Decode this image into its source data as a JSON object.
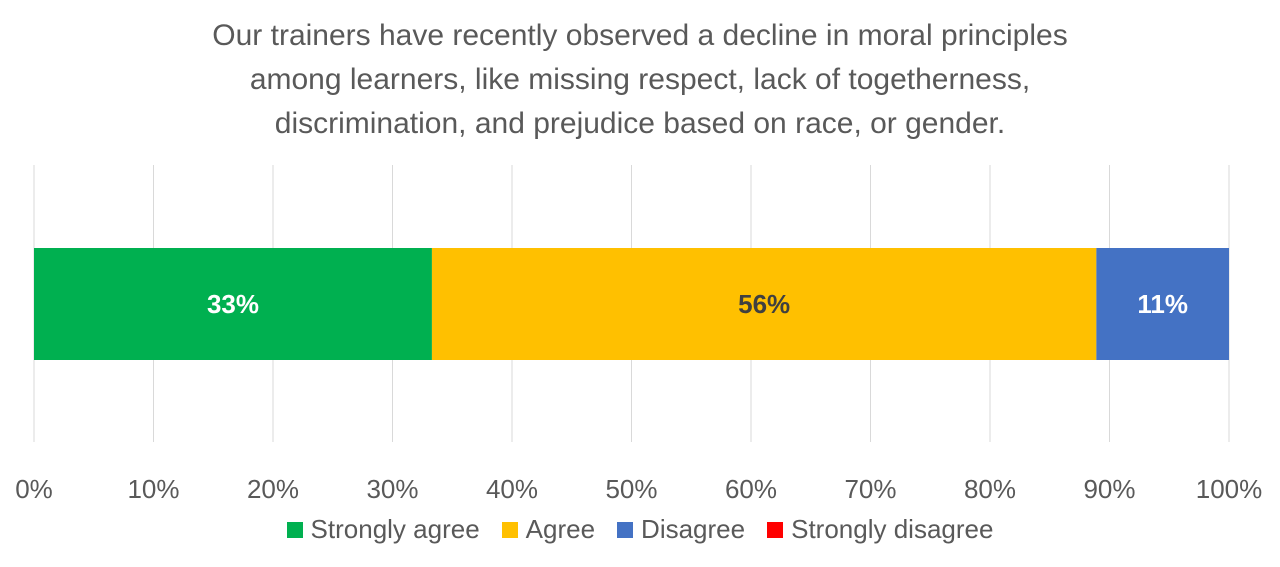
{
  "chart_data": {
    "type": "bar",
    "orientation": "horizontal",
    "stacked": "100%",
    "title_lines": [
      "Our trainers have recently observed a decline in moral principles",
      "among learners, like missing respect, lack of togetherness,",
      "discrimination, and prejudice based on race, or gender."
    ],
    "xlim": [
      0,
      100
    ],
    "x_ticks": [
      "0%",
      "10%",
      "20%",
      "30%",
      "40%",
      "50%",
      "60%",
      "70%",
      "80%",
      "90%",
      "100%"
    ],
    "grid": "vertical",
    "legend_position": "bottom",
    "series": [
      {
        "name": "Strongly agree",
        "value": 33.3,
        "label": "33%",
        "color": "#00B050",
        "label_color": "#ffffff"
      },
      {
        "name": "Agree",
        "value": 55.6,
        "label": "56%",
        "color": "#FFC000",
        "label_color": "#404040"
      },
      {
        "name": "Disagree",
        "value": 11.1,
        "label": "11%",
        "color": "#4472C4",
        "label_color": "#ffffff"
      },
      {
        "name": "Strongly disagree",
        "value": 0,
        "label": "",
        "color": "#FF0000",
        "label_color": "#ffffff"
      }
    ]
  }
}
